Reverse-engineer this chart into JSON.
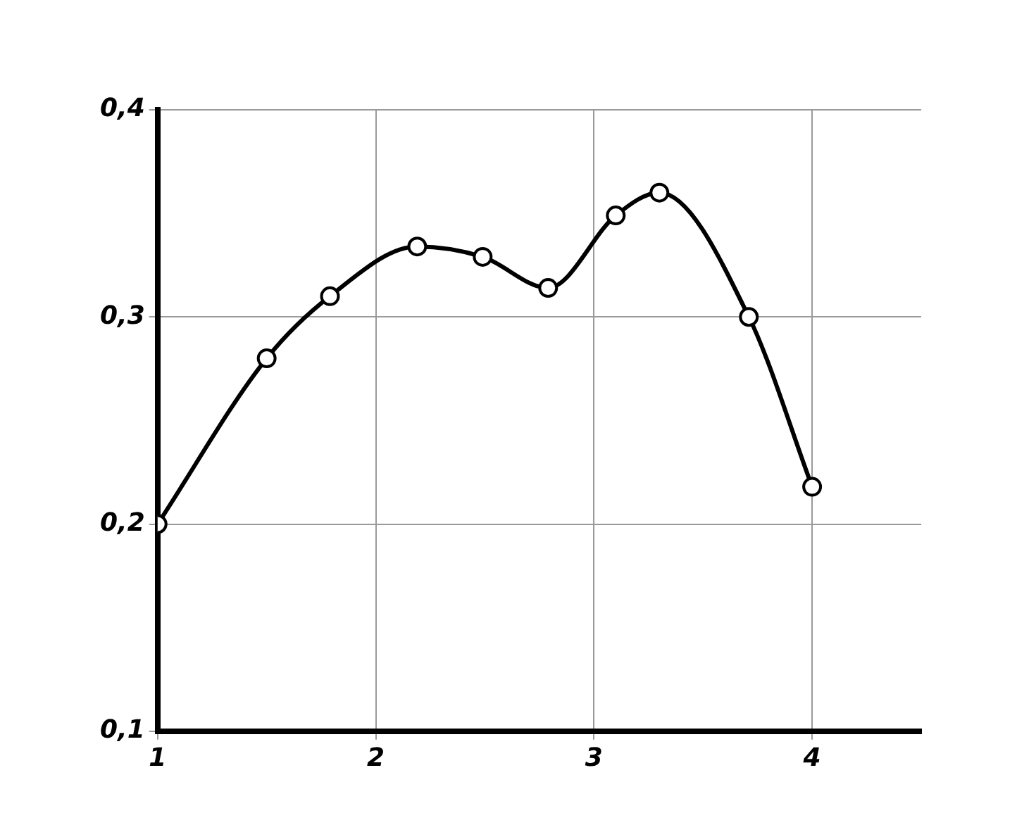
{
  "chart_data": {
    "type": "line",
    "x": [
      1,
      1.5,
      1.79,
      2.19,
      2.49,
      2.79,
      3.1,
      3.3,
      3.71,
      4
    ],
    "series": [
      {
        "color": "#000000",
        "values": [
          0.2,
          0.28,
          0.31,
          0.334,
          0.329,
          0.314,
          0.349,
          0.36,
          0.3,
          0.218
        ]
      }
    ],
    "xlim": [
      1,
      4.5
    ],
    "xticks": [
      1,
      2,
      3,
      4
    ],
    "ylim": [
      0.1,
      0.4
    ],
    "yticks": [
      {
        "value": 0.1,
        "label": "0,1"
      },
      {
        "value": 0.2,
        "label": "0,2"
      },
      {
        "value": 0.3,
        "label": "0,3"
      },
      {
        "value": 0.4,
        "label": "0,4"
      }
    ],
    "grid": true,
    "marker": "circle",
    "line_style": "solid",
    "legend": false
  }
}
